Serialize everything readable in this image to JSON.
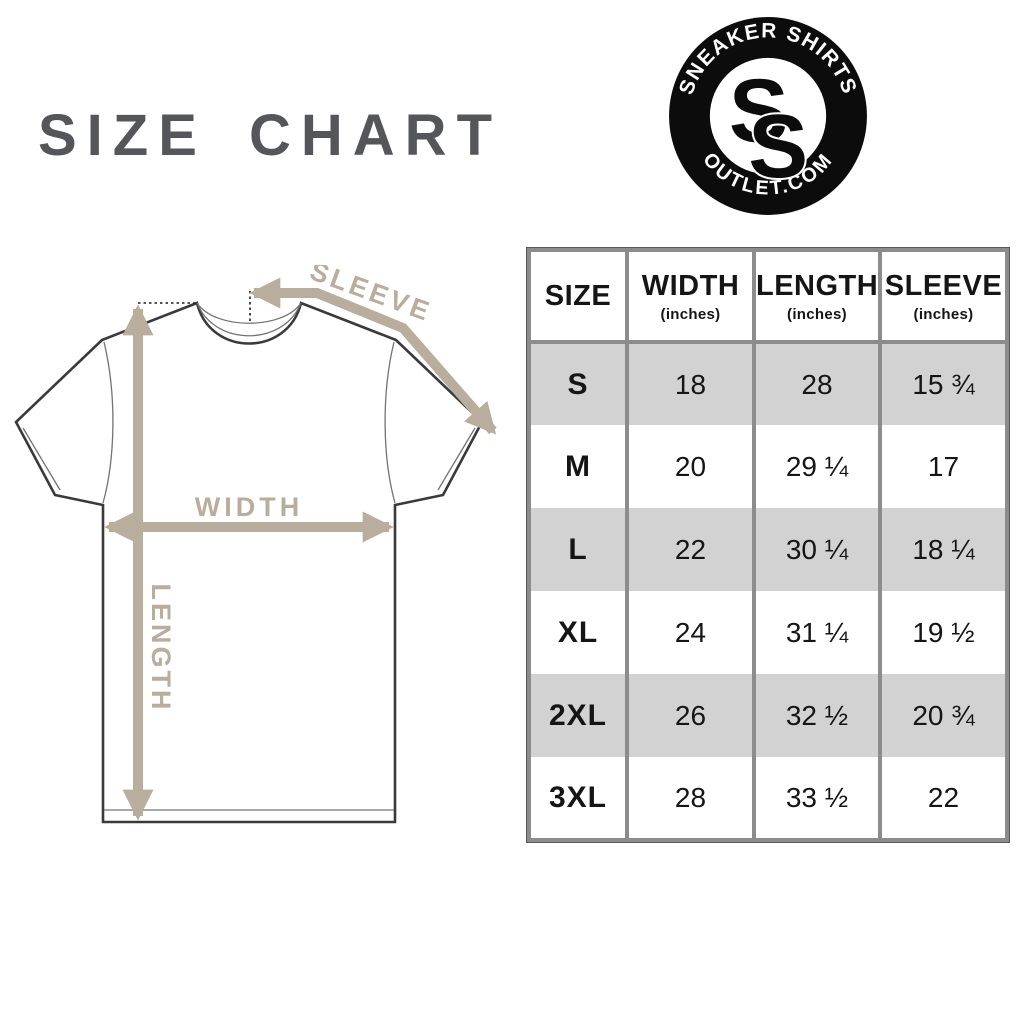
{
  "page": {
    "title": "SIZE CHART",
    "title_color": "#55565a",
    "background": "#ffffff"
  },
  "logo": {
    "top_text": "SNEAKER SHIRTS",
    "bottom_text": "OUTLET.COM",
    "monogram_s1": "S",
    "monogram_s2": "S",
    "circle_color": "#0c0c0c",
    "text_color": "#ffffff"
  },
  "diagram": {
    "sleeve_label": "SLEEVE",
    "width_label": "WIDTH",
    "length_label": "LENGTH",
    "arrow_color": "#b9ad9d",
    "shirt_outline_color": "#3a3a3c"
  },
  "table": {
    "columns": [
      {
        "label": "SIZE",
        "sub": ""
      },
      {
        "label": "WIDTH",
        "sub": "(inches)"
      },
      {
        "label": "LENGTH",
        "sub": "(inches)"
      },
      {
        "label": "SLEEVE",
        "sub": "(inches)"
      }
    ],
    "rows": [
      {
        "size": "S",
        "width": "18",
        "length": "28",
        "sleeve": "15 ¾"
      },
      {
        "size": "M",
        "width": "20",
        "length": "29 ¼",
        "sleeve": "17"
      },
      {
        "size": "L",
        "width": "22",
        "length": "30 ¼",
        "sleeve": "18 ¼"
      },
      {
        "size": "XL",
        "width": "24",
        "length": "31 ¼",
        "sleeve": "19 ½"
      },
      {
        "size": "2XL",
        "width": "26",
        "length": "32 ½",
        "sleeve": "20 ¾"
      },
      {
        "size": "3XL",
        "width": "28",
        "length": "33 ½",
        "sleeve": "22"
      }
    ],
    "alt_row_bg": "#d2d2d2",
    "grid_color": "#8c8c8c"
  },
  "chart_data": {
    "type": "table",
    "title": "SIZE CHART",
    "categories": [
      "S",
      "M",
      "L",
      "XL",
      "2XL",
      "3XL"
    ],
    "series": [
      {
        "name": "WIDTH (inches)",
        "values": [
          18,
          20,
          22,
          24,
          26,
          28
        ]
      },
      {
        "name": "LENGTH (inches)",
        "values": [
          28,
          29.25,
          30.25,
          31.25,
          32.5,
          33.5
        ]
      },
      {
        "name": "SLEEVE (inches)",
        "values": [
          15.75,
          17,
          18.25,
          19.5,
          20.75,
          22
        ]
      }
    ]
  }
}
